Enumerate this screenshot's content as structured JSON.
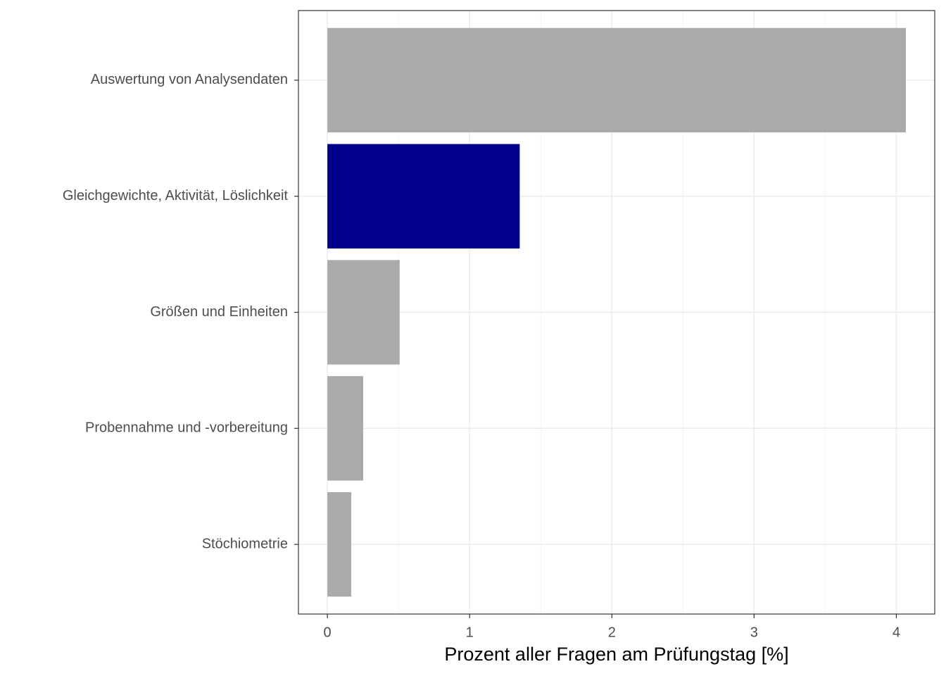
{
  "chart_data": {
    "type": "bar",
    "orientation": "horizontal",
    "x_label": "Prozent aller Fragen am Prüfungstag [%]",
    "categories": [
      "Auswertung von Analysendaten",
      "Gleichgewichte, Aktivität, Löslichkeit",
      "Größen und Einheiten",
      "Probennahme und -vorbereitung",
      "Stöchiometrie"
    ],
    "values": [
      4.067,
      1.352,
      0.508,
      0.252,
      0.168
    ],
    "colors": [
      "#aaaaaa",
      "#00008b",
      "#aaaaaa",
      "#aaaaaa",
      "#aaaaaa"
    ],
    "xlim": [
      -0.2035,
      4.27
    ],
    "xticks": [
      0,
      1,
      2,
      3,
      4
    ],
    "grid": true
  }
}
